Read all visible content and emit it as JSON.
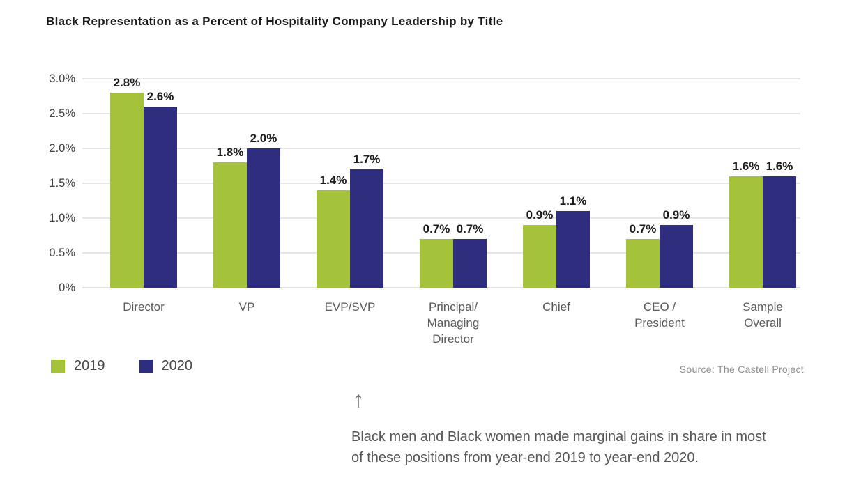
{
  "page": {
    "title": "Black Representation as a Percent of Hospitality Company Leadership by Title"
  },
  "chart_data": {
    "type": "bar",
    "title": "Black Representation as a Percent of Hospitality Company Leadership by Title",
    "categories": [
      "Director",
      "VP",
      "EVP/SVP",
      "Principal/\nManaging\nDirector",
      "Chief",
      "CEO /\nPresident",
      "Sample\nOverall"
    ],
    "series": [
      {
        "name": "2019",
        "color": "#a4c23a",
        "values": [
          2.8,
          1.8,
          1.4,
          0.7,
          0.9,
          0.7,
          1.6
        ],
        "labels": [
          "2.8%",
          "1.8%",
          "1.4%",
          "0.7%",
          "0.9%",
          "0.7%",
          "1.6%"
        ]
      },
      {
        "name": "2020",
        "color": "#2f2d7e",
        "values": [
          2.6,
          2.0,
          1.7,
          0.7,
          1.1,
          0.9,
          1.6
        ],
        "labels": [
          "2.6%",
          "2.0%",
          "1.7%",
          "0.7%",
          "1.1%",
          "0.9%",
          "1.6%"
        ]
      }
    ],
    "y_axis": {
      "min": 0,
      "max": 3.0,
      "ticks": [
        {
          "label": "3.0%",
          "value": 3.0
        },
        {
          "label": "2.5%",
          "value": 2.5
        },
        {
          "label": "2.0%",
          "value": 2.0
        },
        {
          "label": "1.5%",
          "value": 1.5
        },
        {
          "label": "1.0%",
          "value": 1.0
        },
        {
          "label": "0.5%",
          "value": 0.5
        },
        {
          "label": "0%",
          "value": 0
        }
      ]
    },
    "grid": true,
    "gridline_color": "#e7e7e7",
    "legend_position": "bottom-left",
    "xlabel": "",
    "ylabel": ""
  },
  "source_text": "Source: The Castell Project",
  "annotation": {
    "arrow": "↑",
    "line1": "Black men and Black women made marginal gains in share in most",
    "line2": "of these positions from year-end 2019 to year-end 2020."
  }
}
